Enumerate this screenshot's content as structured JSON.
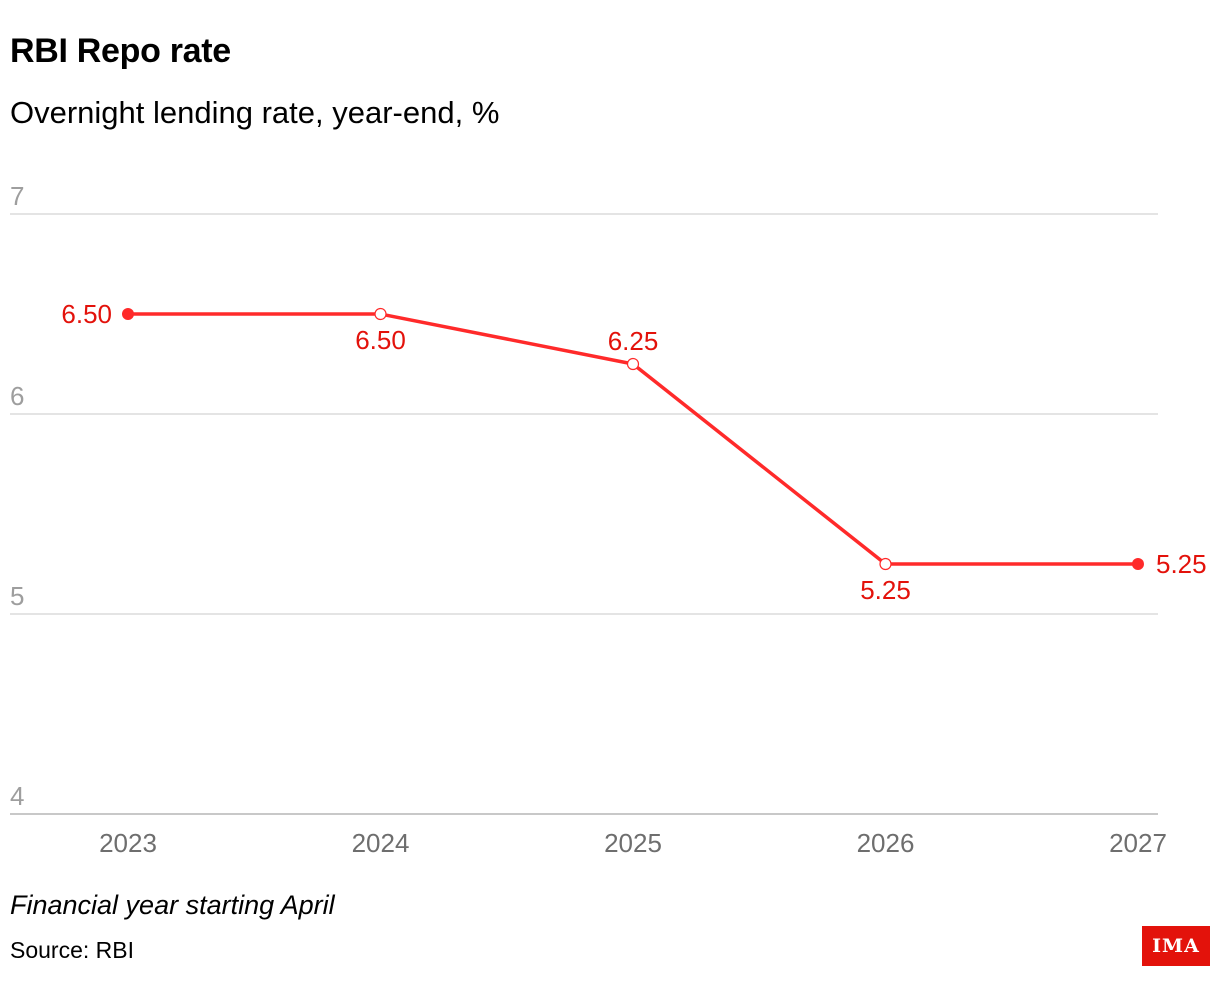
{
  "header": {
    "title": "RBI Repo rate",
    "subtitle": "Overnight lending rate, year-end, %"
  },
  "chart_data": {
    "type": "line",
    "title": "RBI Repo rate",
    "subtitle": "Overnight lending rate, year-end, %",
    "xlabel": "",
    "ylabel": "",
    "categories": [
      "2023",
      "2024",
      "2025",
      "2026",
      "2027"
    ],
    "series": [
      {
        "values": [
          6.5,
          6.5,
          6.25,
          5.25,
          5.25
        ],
        "data_labels": [
          "6.50",
          "6.50",
          "6.25",
          "5.25",
          "5.25"
        ],
        "marker_style": [
          "filled",
          "hollow",
          "hollow",
          "hollow",
          "filled"
        ]
      }
    ],
    "ylim": [
      4,
      7
    ],
    "yticks": [
      "4",
      "5",
      "6",
      "7"
    ],
    "grid": true,
    "legend": "none",
    "line_color": "#ff2a2a",
    "label_color": "#e3120b"
  },
  "footer": {
    "note": "Financial year starting April",
    "source": "Source: RBI",
    "logo": "IMA"
  }
}
